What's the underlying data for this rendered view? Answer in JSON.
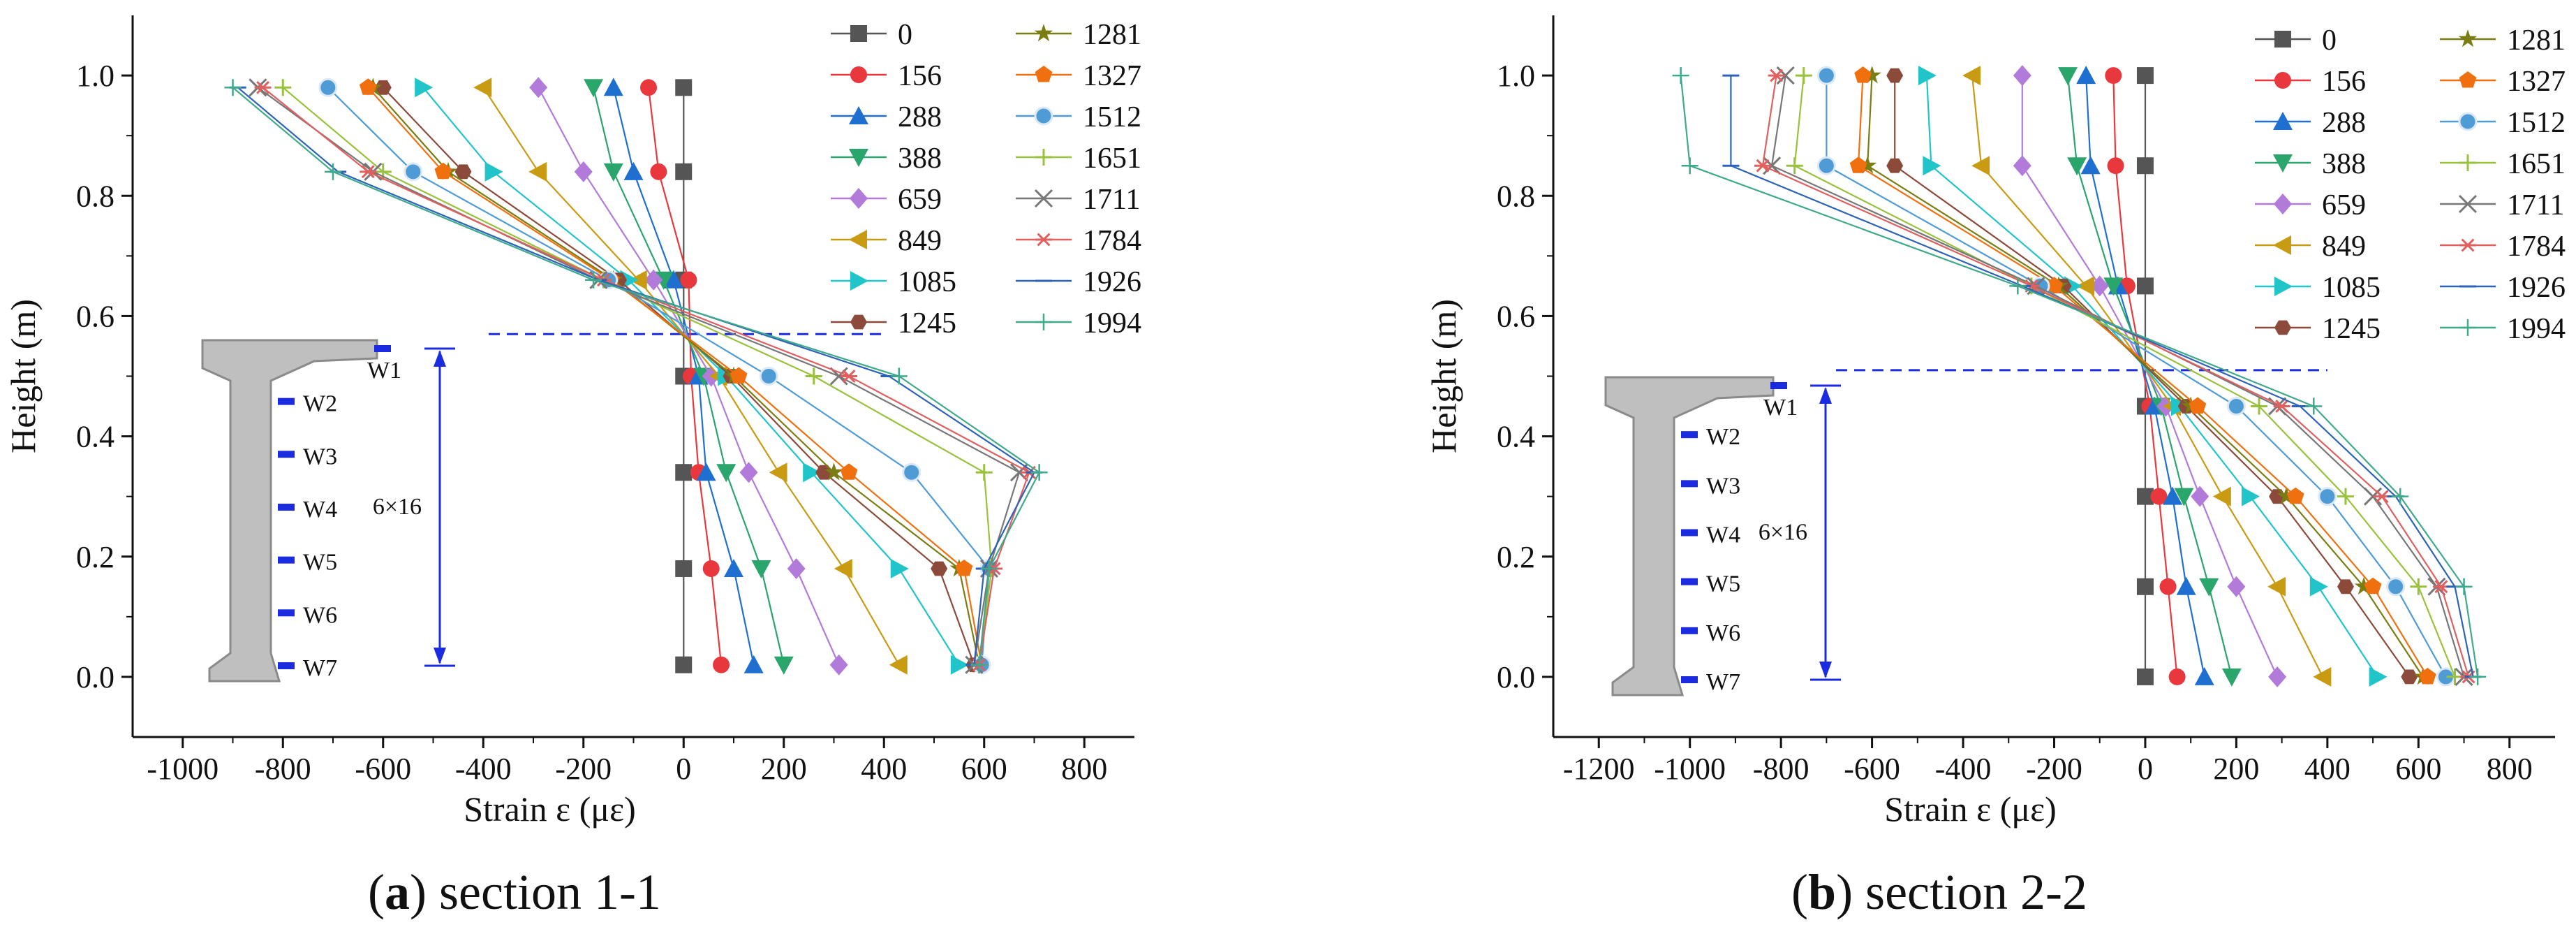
{
  "figure": {
    "captions": [
      {
        "letter": "a",
        "text": "section 1-1"
      },
      {
        "letter": "b",
        "text": "section 2-2"
      }
    ]
  },
  "series_colors": {
    "0": "#555555",
    "156": "#e8383d",
    "288": "#1f6fd1",
    "388": "#2aa56b",
    "659": "#b27bd9",
    "849": "#c89b12",
    "1085": "#20c4c9",
    "1245": "#8b4a3a",
    "1281": "#7a7d12",
    "1327": "#f07010",
    "1512": "#4e9bd6",
    "1651": "#98c23c",
    "1711": "#777777",
    "1784": "#e05f5f",
    "1926": "#2c63b8",
    "1994": "#3fa98c"
  },
  "chart_data": [
    {
      "type": "line",
      "title": "section 1-1",
      "xlabel": "Strain ε (με)",
      "ylabel": "Height (m)",
      "xlim": [
        -1100,
        900
      ],
      "ylim": [
        -0.1,
        1.1
      ],
      "xticks": [
        -1000,
        -800,
        -600,
        -400,
        -200,
        0,
        200,
        400,
        600,
        800
      ],
      "yticks": [
        0.0,
        0.2,
        0.4,
        0.6,
        0.8,
        1.0
      ],
      "legend_title": "",
      "neutral_axis_height": 0.57,
      "gauge_span_label": "6×16",
      "gauge_labels": [
        "W1",
        "W2",
        "W3",
        "W4",
        "W5",
        "W6",
        "W7"
      ],
      "heights": [
        0.98,
        0.84,
        0.66,
        0.5,
        0.34,
        0.18,
        0.02
      ],
      "series": [
        {
          "name": "0",
          "marker": "square",
          "values": [
            0,
            0,
            0,
            0,
            0,
            0,
            0
          ]
        },
        {
          "name": "156",
          "marker": "circle",
          "values": [
            -70,
            -50,
            10,
            15,
            30,
            55,
            75
          ]
        },
        {
          "name": "288",
          "marker": "triangle",
          "values": [
            -140,
            -100,
            -20,
            30,
            45,
            100,
            140
          ]
        },
        {
          "name": "388",
          "marker": "tri-down",
          "values": [
            -180,
            -140,
            -40,
            40,
            85,
            155,
            200
          ]
        },
        {
          "name": "659",
          "marker": "diamond",
          "values": [
            -290,
            -200,
            -60,
            55,
            130,
            225,
            310
          ]
        },
        {
          "name": "849",
          "marker": "tri-left",
          "values": [
            -400,
            -290,
            -90,
            70,
            190,
            320,
            430
          ]
        },
        {
          "name": "1085",
          "marker": "tri-right",
          "values": [
            -520,
            -380,
            -110,
            85,
            255,
            430,
            550
          ]
        },
        {
          "name": "1245",
          "marker": "hexagon",
          "values": [
            -600,
            -440,
            -130,
            95,
            280,
            510,
            580
          ]
        },
        {
          "name": "1281",
          "marker": "star",
          "values": [
            -620,
            -470,
            -140,
            100,
            300,
            550,
            590
          ]
        },
        {
          "name": "1327",
          "marker": "pentagon",
          "values": [
            -630,
            -480,
            -145,
            110,
            330,
            560,
            595
          ]
        },
        {
          "name": "1512",
          "marker": "sphere",
          "values": [
            -710,
            -540,
            -150,
            170,
            455,
            610,
            595
          ]
        },
        {
          "name": "1651",
          "marker": "plus",
          "values": [
            -800,
            -600,
            -160,
            260,
            600,
            615,
            590
          ]
        },
        {
          "name": "1711",
          "marker": "x",
          "values": [
            -850,
            -620,
            -170,
            310,
            670,
            610,
            580
          ]
        },
        {
          "name": "1784",
          "marker": "asterisk",
          "values": [
            -840,
            -630,
            -160,
            330,
            690,
            620,
            590
          ]
        },
        {
          "name": "1926",
          "marker": "dash",
          "values": [
            -890,
            -690,
            -170,
            410,
            700,
            600,
            580
          ]
        },
        {
          "name": "1994",
          "marker": "cross",
          "values": [
            -900,
            -700,
            -180,
            430,
            710,
            610,
            590
          ]
        }
      ]
    },
    {
      "type": "line",
      "title": "section 2-2",
      "xlabel": "Strain ε (με)",
      "ylabel": "Height (m)",
      "xlim": [
        -1300,
        900
      ],
      "ylim": [
        -0.1,
        1.1
      ],
      "xticks": [
        -1200,
        -1000,
        -800,
        -600,
        -400,
        -200,
        0,
        200,
        400,
        600,
        800
      ],
      "yticks": [
        0.0,
        0.2,
        0.4,
        0.6,
        0.8,
        1.0
      ],
      "neutral_axis_height": 0.51,
      "gauge_span_label": "6×16",
      "gauge_labels": [
        "W1",
        "W2",
        "W3",
        "W4",
        "W5",
        "W6",
        "W7"
      ],
      "heights": [
        1.0,
        0.85,
        0.65,
        0.45,
        0.3,
        0.15,
        0.0
      ],
      "series": [
        {
          "name": "0",
          "marker": "square",
          "values": [
            0,
            0,
            0,
            0,
            0,
            0,
            0
          ]
        },
        {
          "name": "156",
          "marker": "circle",
          "values": [
            -70,
            -65,
            -40,
            10,
            30,
            50,
            70
          ]
        },
        {
          "name": "288",
          "marker": "triangle",
          "values": [
            -130,
            -120,
            -60,
            20,
            60,
            90,
            130
          ]
        },
        {
          "name": "388",
          "marker": "tri-down",
          "values": [
            -170,
            -150,
            -70,
            35,
            85,
            140,
            190
          ]
        },
        {
          "name": "659",
          "marker": "diamond",
          "values": [
            -270,
            -270,
            -100,
            45,
            120,
            200,
            290
          ]
        },
        {
          "name": "849",
          "marker": "tri-left",
          "values": [
            -380,
            -360,
            -130,
            60,
            170,
            290,
            390
          ]
        },
        {
          "name": "1085",
          "marker": "tri-right",
          "values": [
            -480,
            -470,
            -160,
            75,
            230,
            380,
            510
          ]
        },
        {
          "name": "1245",
          "marker": "hexagon",
          "values": [
            -550,
            -550,
            -180,
            90,
            290,
            440,
            580
          ]
        },
        {
          "name": "1281",
          "marker": "star",
          "values": [
            -600,
            -610,
            -190,
            100,
            310,
            480,
            610
          ]
        },
        {
          "name": "1327",
          "marker": "pentagon",
          "values": [
            -620,
            -630,
            -200,
            115,
            330,
            500,
            620
          ]
        },
        {
          "name": "1512",
          "marker": "sphere",
          "values": [
            -700,
            -700,
            -230,
            200,
            400,
            550,
            660
          ]
        },
        {
          "name": "1651",
          "marker": "plus",
          "values": [
            -750,
            -770,
            -250,
            250,
            440,
            600,
            680
          ]
        },
        {
          "name": "1711",
          "marker": "x",
          "values": [
            -790,
            -820,
            -240,
            290,
            500,
            640,
            700
          ]
        },
        {
          "name": "1784",
          "marker": "asterisk",
          "values": [
            -810,
            -840,
            -250,
            300,
            520,
            650,
            710
          ]
        },
        {
          "name": "1926",
          "marker": "dash",
          "values": [
            -910,
            -910,
            -270,
            340,
            550,
            680,
            720
          ]
        },
        {
          "name": "1994",
          "marker": "cross",
          "values": [
            -1020,
            -1000,
            -280,
            370,
            560,
            700,
            730
          ]
        }
      ]
    }
  ]
}
